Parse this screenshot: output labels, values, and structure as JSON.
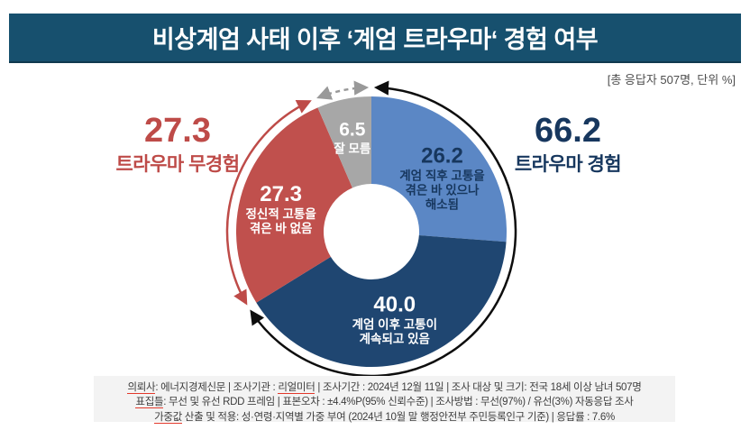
{
  "header": {
    "title": "비상계엄 사태 이후 ‘계엄 트라우마‘ 경험 여부",
    "bg_color": "#17506E",
    "note": "[총 응답자 507명, 단위 %]"
  },
  "chart_data": {
    "type": "pie",
    "subtype": "donut",
    "title": "비상계엄 사태 이후 ‘계엄 트라우마‘ 경험 여부",
    "unit": "%",
    "total_respondents": 507,
    "slices": [
      {
        "label": "계엄 직후 고통을 겪은 바 있으나 해소됨",
        "value": 26.2,
        "value_label": "26.2",
        "label_lines": [
          "계엄 직후 고통을",
          "겪은 바 있으나",
          "해소됨"
        ],
        "color": "#5B87C5",
        "text_color": "#17375E"
      },
      {
        "label": "계엄 이후 고통이 계속되고 있음",
        "value": 40.0,
        "value_label": "40.0",
        "label_lines": [
          "계엄 이후 고통이",
          "계속되고 있음"
        ],
        "color": "#1F4671",
        "text_color": "#FFFFFF"
      },
      {
        "label": "정신적 고통을 겪은 바 없음",
        "value": 27.3,
        "value_label": "27.3",
        "label_lines": [
          "정신적 고통을",
          "겪은 바 없음"
        ],
        "color": "#C0504D",
        "text_color": "#FFFFFF"
      },
      {
        "label": "잘 모름",
        "value": 6.5,
        "value_label": "6.5",
        "label_lines": [
          "잘 모름"
        ],
        "color": "#A7A7A7",
        "text_color": "#FFFFFF"
      }
    ],
    "groups": [
      {
        "name": "트라우마 경험",
        "value": 66.2,
        "value_label": "66.2",
        "side": "right",
        "slice_indexes": [
          0,
          1
        ],
        "text_color": "#17375E",
        "arc_color": "#0D0D0D",
        "arc_style": "solid"
      },
      {
        "name": "트라우마 무경험",
        "value": 27.3,
        "value_label": "27.3",
        "side": "left",
        "slice_indexes": [
          2
        ],
        "text_color": "#BE4B48",
        "arc_color": "#BE4B48",
        "arc_style": "solid"
      },
      {
        "name": "잘 모름",
        "value": 6.5,
        "value_label": "6.5",
        "side": "none",
        "slice_indexes": [
          3
        ],
        "text_color": "#A7A7A7",
        "arc_color": "#999999",
        "arc_style": "dashed"
      }
    ]
  },
  "footer": {
    "lines": [
      [
        {
          "t": "의뢰사",
          "u": 1
        },
        {
          "t": ": 에너지경제신문 | 조사기관 : "
        },
        {
          "t": "리얼미터",
          "u": 1
        },
        {
          "t": "  |  조사기간 : 2024년 12월 11일 | 조사 대상 및 크기: 전국 18세 이상 남녀 507명"
        }
      ],
      [
        {
          "t": "표집틀",
          "u": 1
        },
        {
          "t": ": 무선 및 유선 RDD 프레임 | 표본오차 : ±4.4%P(95% 신뢰수준) | 조사방법 : 무선(97%) / 유선(3%) 자동응답 조사"
        }
      ],
      [
        {
          "t": "가중값",
          "u": 1
        },
        {
          "t": " 산출 및 적용: 성·연령·지역별 가중 부여 (2024년 10월 말 행정안전부 주민등록인구 기준) | 응답률 : 7.6%"
        }
      ]
    ]
  }
}
